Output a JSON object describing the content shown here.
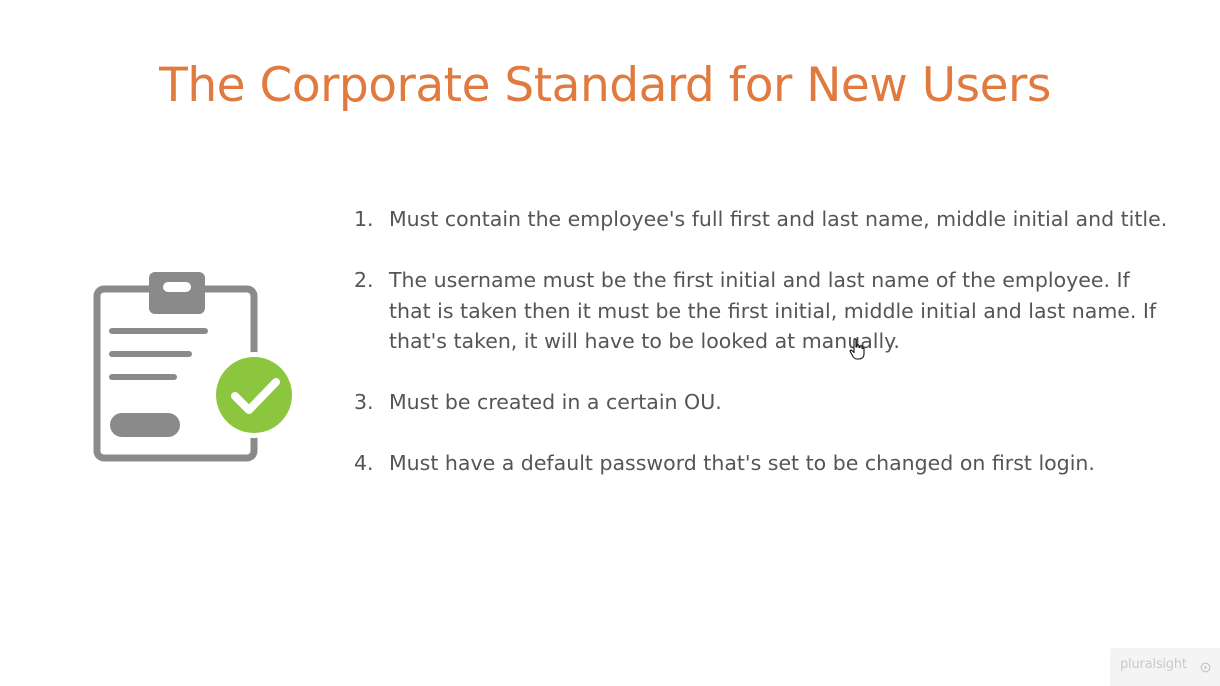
{
  "slide": {
    "title": "The Corporate Standard for New Users",
    "rules": [
      {
        "number": "1.",
        "text": "Must contain the employee's full first and last name, middle initial and title."
      },
      {
        "number": "2.",
        "text": "The username must be the first initial and last name of the employee. If that is taken then it must be the first initial, middle initial and last name. If that's taken, it will have to be looked at manually."
      },
      {
        "number": "3.",
        "text": "Must be created in a certain OU."
      },
      {
        "number": "4.",
        "text": "Must have a default password that's set to be changed on first login."
      }
    ]
  },
  "watermark": {
    "text": "pluralsight"
  },
  "icons": {
    "illustration": "clipboard-check-icon",
    "cursor": "hand-pointer-icon",
    "watermark_logo": "pluralsight-logo-icon"
  },
  "colors": {
    "title": "#e07a3f",
    "body_text": "#555555",
    "clipboard_gray": "#8a8a8a",
    "check_green": "#8cc63f"
  }
}
